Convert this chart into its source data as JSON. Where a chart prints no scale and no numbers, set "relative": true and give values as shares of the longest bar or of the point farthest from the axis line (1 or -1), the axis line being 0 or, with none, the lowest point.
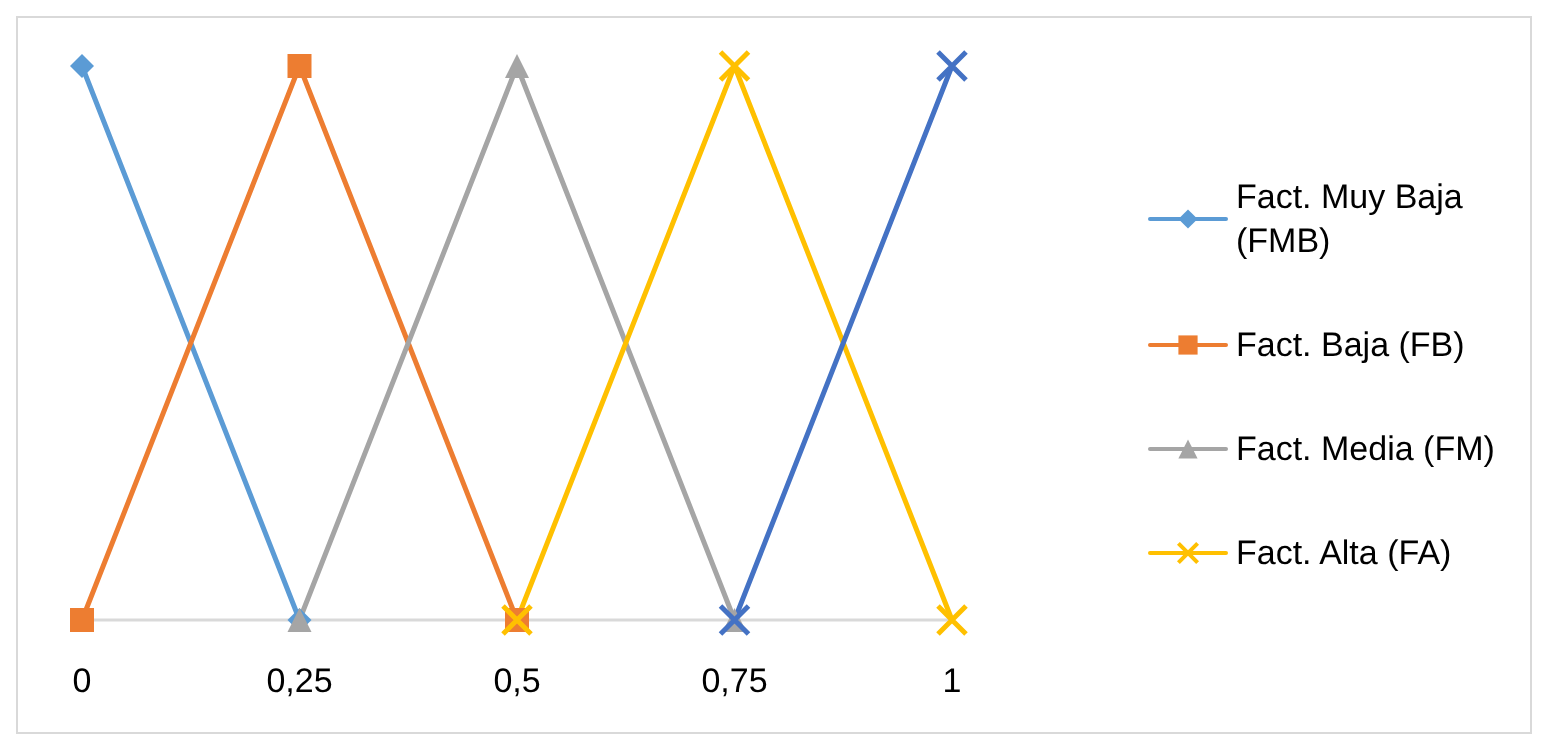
{
  "chart_data": {
    "type": "line",
    "relative": true,
    "xlim": [
      0,
      1
    ],
    "xticks": [
      0,
      {
        "value": 0.25,
        "label": "0,25"
      },
      {
        "value": 0.5,
        "label": "0,5"
      },
      {
        "value": 0.75,
        "label": "0,75"
      },
      1
    ],
    "legend": "right",
    "grid": false,
    "line_style": "solid",
    "series": [
      {
        "name": "Fact. Muy Baja (FMB)",
        "color": "#5b9bd5",
        "marker": "diamond",
        "x": [
          0,
          0.25
        ],
        "values": [
          1,
          0
        ]
      },
      {
        "name": "Fact. Baja (FB)",
        "color": "#ed7d31",
        "marker": "square",
        "x": [
          0,
          0.25,
          0.5
        ],
        "values": [
          0,
          1,
          0
        ]
      },
      {
        "name": "Fact. Media (FM)",
        "color": "#a5a5a5",
        "marker": "triangle",
        "x": [
          0.25,
          0.5,
          0.75
        ],
        "values": [
          0,
          1,
          0
        ]
      },
      {
        "name": "Fact. Alta (FA)",
        "color": "#ffc000",
        "marker": "cross",
        "x": [
          0.5,
          0.75,
          1
        ],
        "values": [
          0,
          1,
          0
        ]
      },
      {
        "color": "#4472c4",
        "marker": "cross",
        "x": [
          0.75,
          1
        ],
        "values": [
          0,
          1
        ]
      }
    ]
  }
}
